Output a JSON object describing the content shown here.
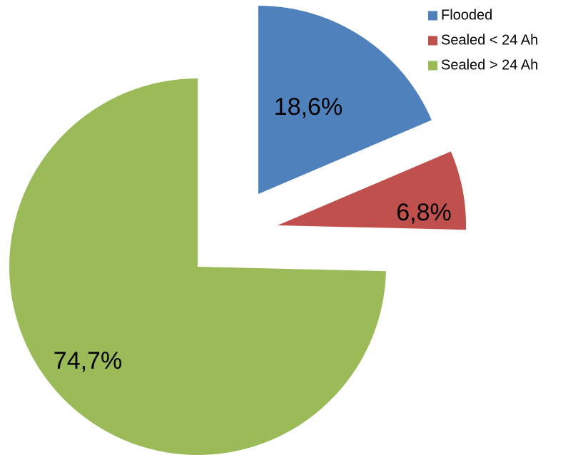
{
  "chart_data": {
    "type": "pie",
    "title": "",
    "exploded": true,
    "legend_position": "top-right",
    "slices": [
      {
        "name": "Flooded",
        "value": 18.6,
        "label": "18,6%",
        "color": "#4F81BD"
      },
      {
        "name": "Sealed < 24 Ah",
        "value": 6.8,
        "label": "6,8%",
        "color": "#C0504D"
      },
      {
        "name": "Sealed > 24 Ah",
        "value": 74.7,
        "label": "74,7%",
        "color": "#9BBB59"
      }
    ]
  }
}
